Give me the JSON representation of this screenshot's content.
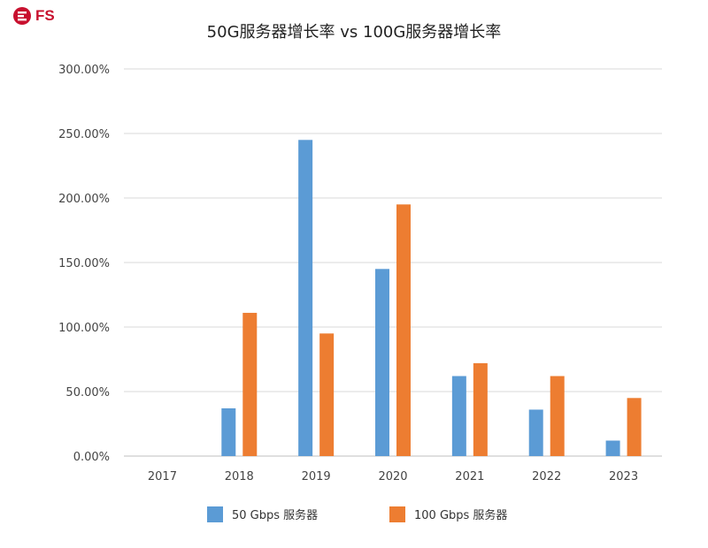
{
  "logo": {
    "text": "FS",
    "icon": "fs-logo-icon",
    "color": "#c8102e"
  },
  "chart_data": {
    "type": "bar",
    "title": "50G服务器增长率 vs 100G服务器增长率",
    "categories": [
      "2017",
      "2018",
      "2019",
      "2020",
      "2021",
      "2022",
      "2023"
    ],
    "series": [
      {
        "name": "50 Gbps 服务器",
        "color": "#5b9bd5",
        "values": [
          null,
          37,
          245,
          145,
          62,
          36,
          12
        ]
      },
      {
        "name": "100 Gbps 服务器",
        "color": "#ed7d31",
        "values": [
          null,
          111,
          95,
          195,
          72,
          62,
          45
        ]
      }
    ],
    "ylim": [
      0,
      300
    ],
    "yticks": [
      0,
      50,
      100,
      150,
      200,
      250,
      300
    ],
    "ytick_labels": [
      "0.00%",
      "50.00%",
      "100.00%",
      "150.00%",
      "200.00%",
      "250.00%",
      "300.00%"
    ],
    "xlabel": "",
    "ylabel": "",
    "grid": true,
    "legend_position": "bottom"
  }
}
